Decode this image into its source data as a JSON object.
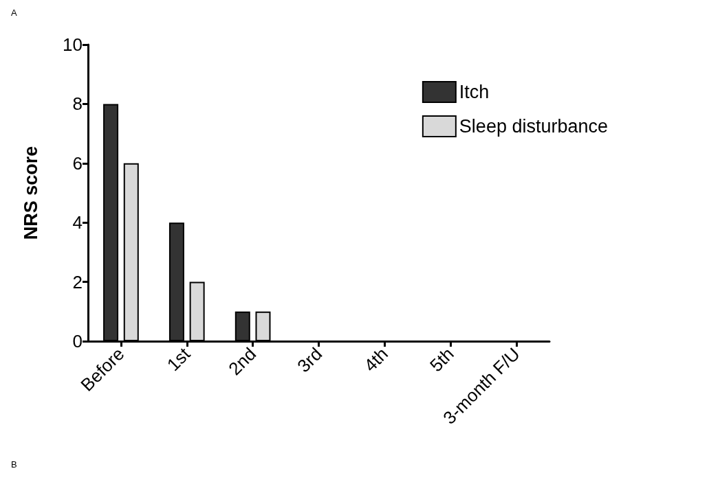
{
  "chart_data": {
    "type": "bar",
    "ylabel": "NRS score",
    "categories": [
      "Before",
      "1st",
      "2nd",
      "3rd",
      "4th",
      "5th",
      "3-month F/U"
    ],
    "series": [
      {
        "name": "Itch",
        "color": "#333333",
        "values": [
          8,
          4,
          1,
          0,
          0,
          0,
          0
        ]
      },
      {
        "name": "Sleep disturbance",
        "color": "#d9d9d9",
        "values": [
          6,
          2,
          1,
          0,
          0,
          0,
          0
        ]
      }
    ],
    "ylim": [
      0,
      10
    ],
    "yticks": [
      0,
      2,
      4,
      6,
      8,
      10
    ],
    "grid": false,
    "legend": "top right",
    "annotations": [
      "A",
      "B"
    ]
  }
}
